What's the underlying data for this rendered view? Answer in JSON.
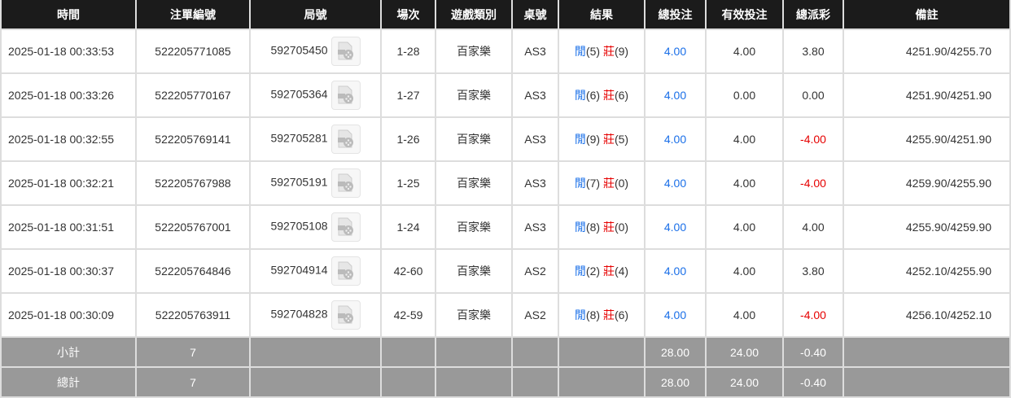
{
  "headers": [
    "時間",
    "注單編號",
    "局號",
    "場次",
    "遊戲類別",
    "桌號",
    "結果",
    "總投注",
    "有效投注",
    "總派彩",
    "備註"
  ],
  "rows": [
    {
      "time": "2025-01-18 00:33:53",
      "bet_id": "522205771085",
      "round": "592705450",
      "shoe": "1-28",
      "game": "百家樂",
      "table": "AS3",
      "player": "閒",
      "player_pts": "(5)",
      "banker": "莊",
      "banker_pts": "(9)",
      "total": "4.00",
      "valid": "4.00",
      "payout": "3.80",
      "payout_neg": false,
      "note": "4251.90/4255.70"
    },
    {
      "time": "2025-01-18 00:33:26",
      "bet_id": "522205770167",
      "round": "592705364",
      "shoe": "1-27",
      "game": "百家樂",
      "table": "AS3",
      "player": "閒",
      "player_pts": "(6)",
      "banker": "莊",
      "banker_pts": "(6)",
      "total": "4.00",
      "valid": "0.00",
      "payout": "0.00",
      "payout_neg": false,
      "note": "4251.90/4251.90"
    },
    {
      "time": "2025-01-18 00:32:55",
      "bet_id": "522205769141",
      "round": "592705281",
      "shoe": "1-26",
      "game": "百家樂",
      "table": "AS3",
      "player": "閒",
      "player_pts": "(9)",
      "banker": "莊",
      "banker_pts": "(5)",
      "total": "4.00",
      "valid": "4.00",
      "payout": "-4.00",
      "payout_neg": true,
      "note": "4255.90/4251.90"
    },
    {
      "time": "2025-01-18 00:32:21",
      "bet_id": "522205767988",
      "round": "592705191",
      "shoe": "1-25",
      "game": "百家樂",
      "table": "AS3",
      "player": "閒",
      "player_pts": "(7)",
      "banker": "莊",
      "banker_pts": "(0)",
      "total": "4.00",
      "valid": "4.00",
      "payout": "-4.00",
      "payout_neg": true,
      "note": "4259.90/4255.90"
    },
    {
      "time": "2025-01-18 00:31:51",
      "bet_id": "522205767001",
      "round": "592705108",
      "shoe": "1-24",
      "game": "百家樂",
      "table": "AS3",
      "player": "閒",
      "player_pts": "(8)",
      "banker": "莊",
      "banker_pts": "(0)",
      "total": "4.00",
      "valid": "4.00",
      "payout": "4.00",
      "payout_neg": false,
      "note": "4255.90/4259.90"
    },
    {
      "time": "2025-01-18 00:30:37",
      "bet_id": "522205764846",
      "round": "592704914",
      "shoe": "42-60",
      "game": "百家樂",
      "table": "AS2",
      "player": "閒",
      "player_pts": "(2)",
      "banker": "莊",
      "banker_pts": "(4)",
      "total": "4.00",
      "valid": "4.00",
      "payout": "3.80",
      "payout_neg": false,
      "note": "4252.10/4255.90"
    },
    {
      "time": "2025-01-18 00:30:09",
      "bet_id": "522205763911",
      "round": "592704828",
      "shoe": "42-59",
      "game": "百家樂",
      "table": "AS2",
      "player": "閒",
      "player_pts": "(8)",
      "banker": "莊",
      "banker_pts": "(6)",
      "total": "4.00",
      "valid": "4.00",
      "payout": "-4.00",
      "payout_neg": true,
      "note": "4256.10/4252.10"
    }
  ],
  "subtotal": {
    "label": "小計",
    "count": "7",
    "total": "28.00",
    "valid": "24.00",
    "payout": "-0.40"
  },
  "grandtotal": {
    "label": "總計",
    "count": "7",
    "total": "28.00",
    "valid": "24.00",
    "payout": "-0.40"
  },
  "colors": {
    "blue": "#1a6fe8",
    "red": "#e60000",
    "header": "#1b1b1b",
    "summary": "#999999"
  },
  "icons": {
    "replay": "video-replay-icon"
  }
}
